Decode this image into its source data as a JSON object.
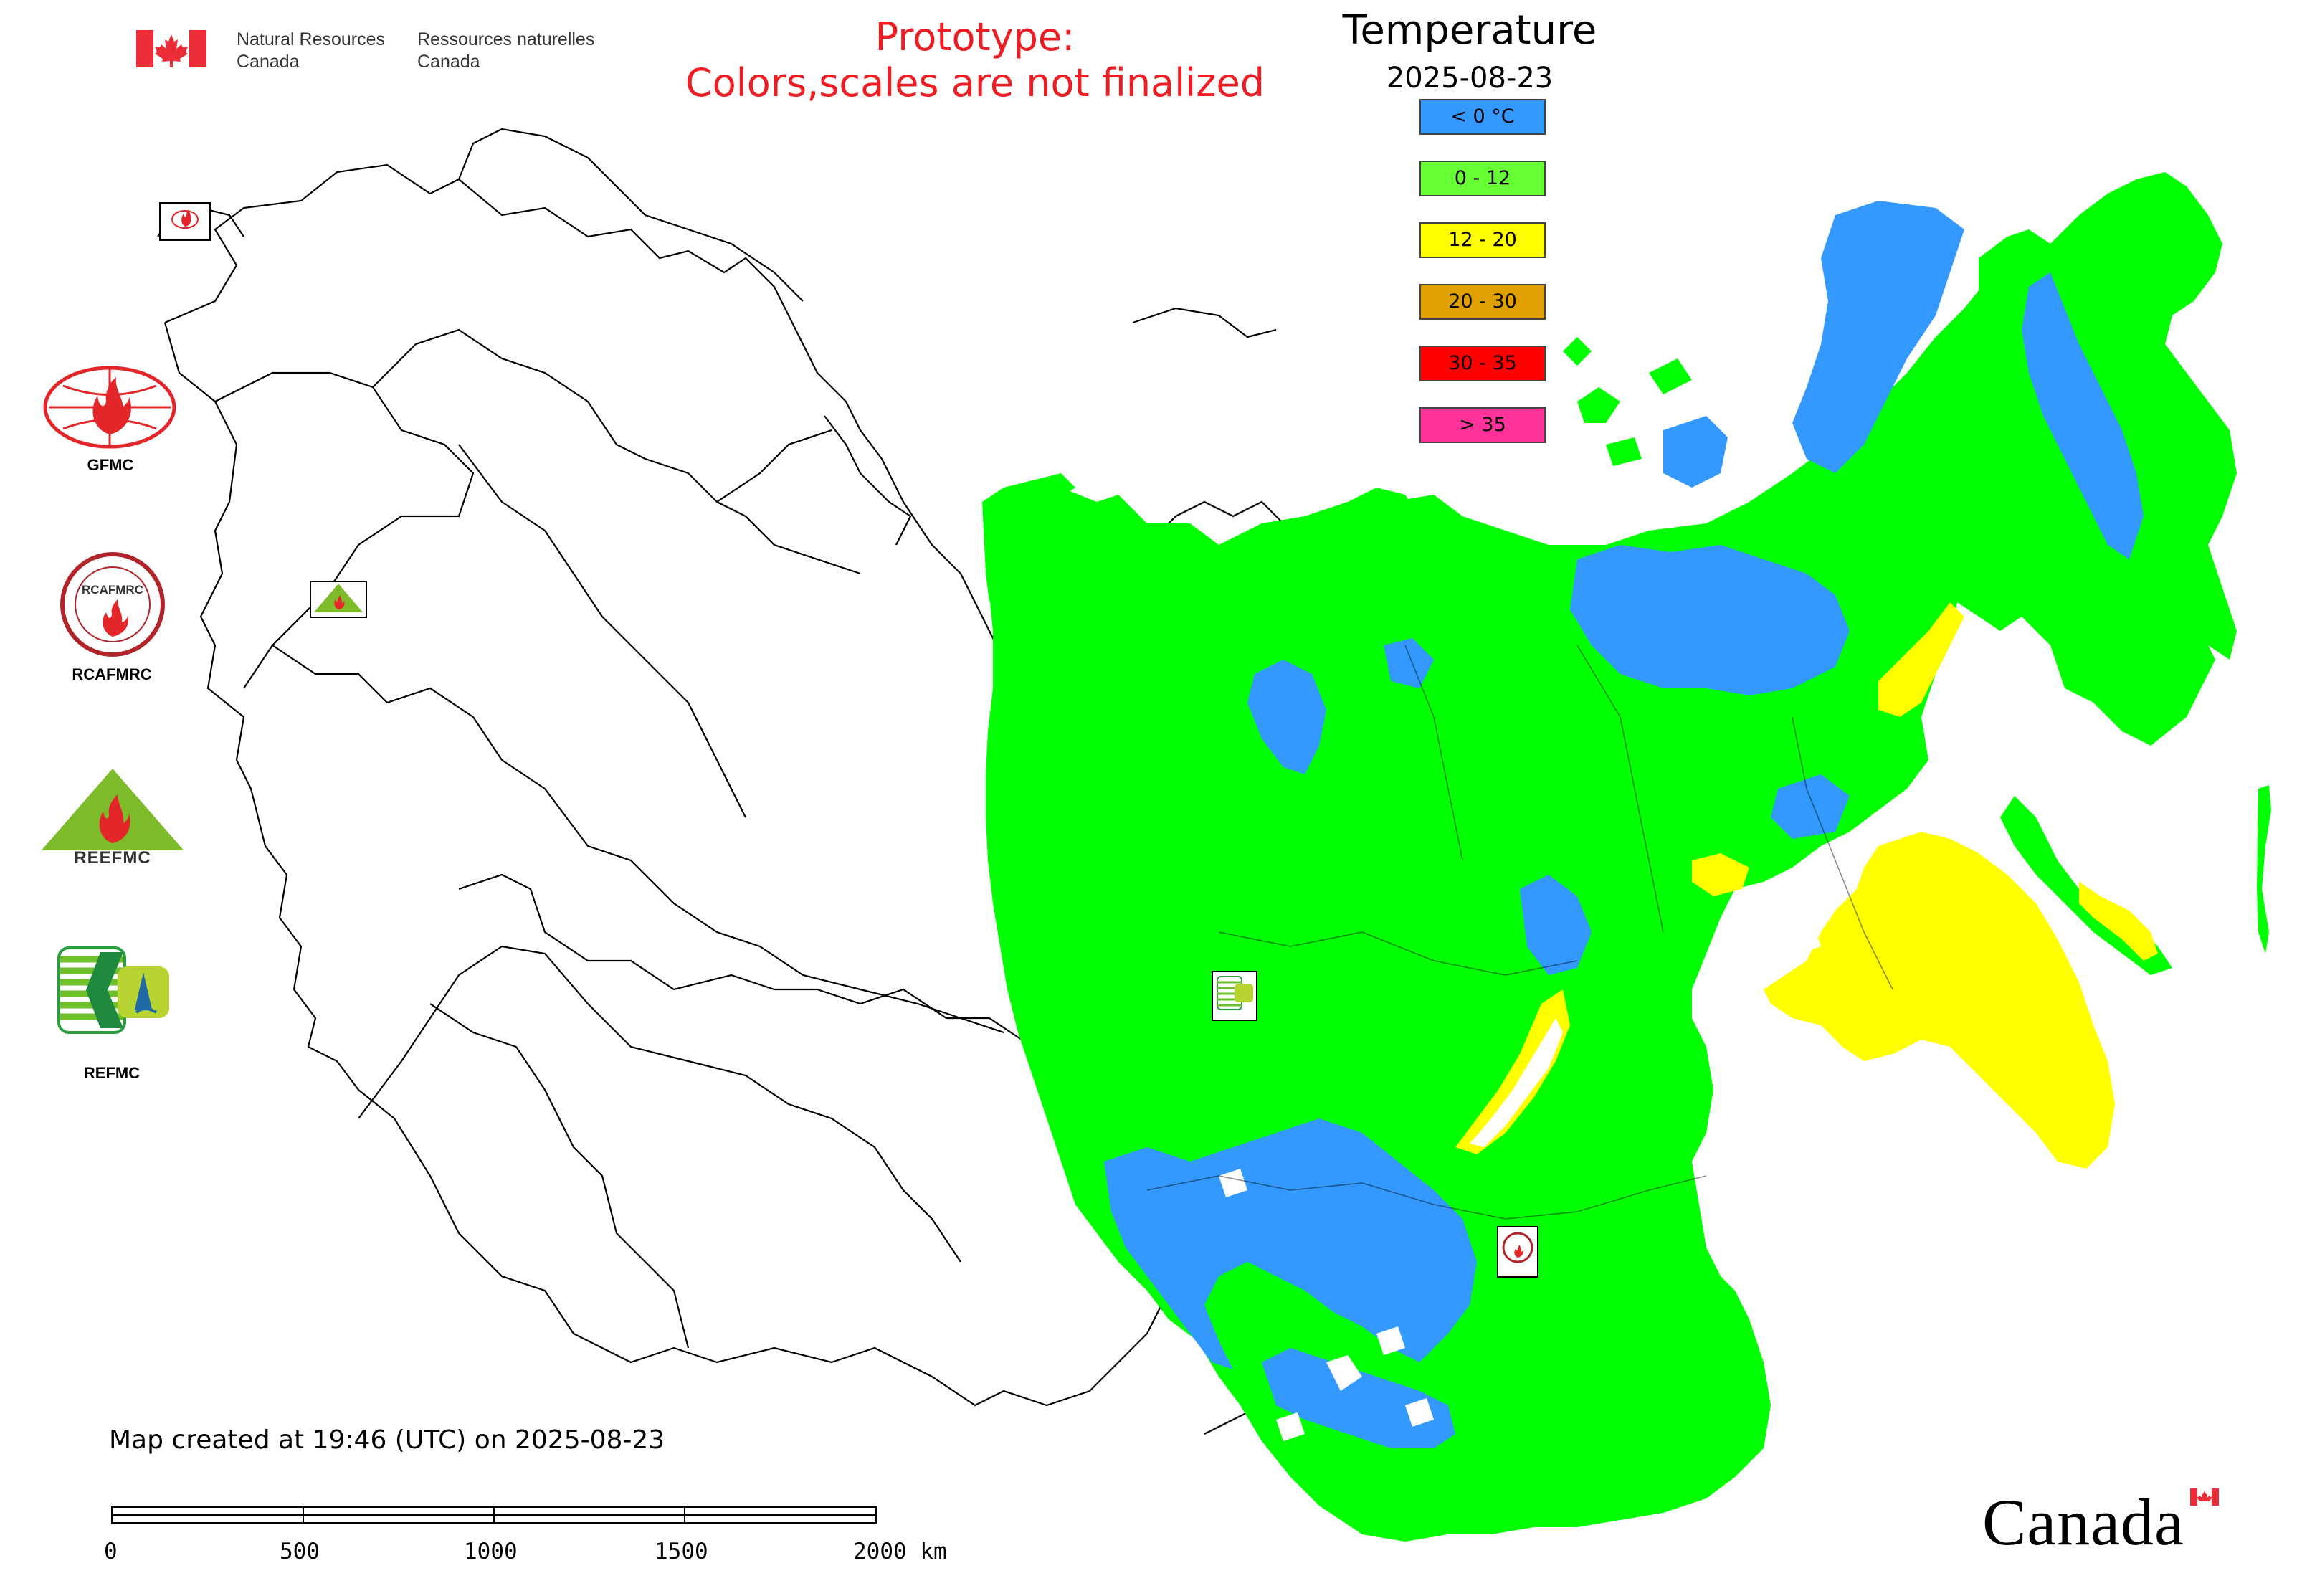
{
  "header": {
    "dept_en_line1": "Natural Resources",
    "dept_en_line2": "Canada",
    "dept_fr_line1": "Ressources naturelles",
    "dept_fr_line2": "Canada",
    "prototype_line1": "Prototype:",
    "prototype_line2": "Colors,scales are not finalized"
  },
  "legend": {
    "title": "Temperature",
    "date": "2025-08-23",
    "items": [
      {
        "label": "< 0 °C",
        "color": "#3399ff"
      },
      {
        "label": "0 - 12",
        "color": "#66ff33"
      },
      {
        "label": "12 - 20",
        "color": "#ffff00"
      },
      {
        "label": "20 - 30",
        "color": "#e0a000"
      },
      {
        "label": "30 - 35",
        "color": "#ff0000"
      },
      {
        "label": "> 35",
        "color": "#ff3399"
      }
    ]
  },
  "logos": {
    "gfmc": "GFMC",
    "rcafmrc": "RCAFMRC",
    "reefmc": "REEFMC",
    "refmc": "REFMC",
    "rcafmrc_ring_text": "RCAFMRC"
  },
  "footer": {
    "created": "Map created at 19:46 (UTC) on 2025-08-23",
    "scale_ticks": [
      "0",
      "500",
      "1000",
      "1500",
      "2000 km"
    ],
    "wordmark": "Canada"
  },
  "colors": {
    "green": "#00ff00",
    "blue": "#3399ff",
    "yellow": "#ffff00"
  }
}
